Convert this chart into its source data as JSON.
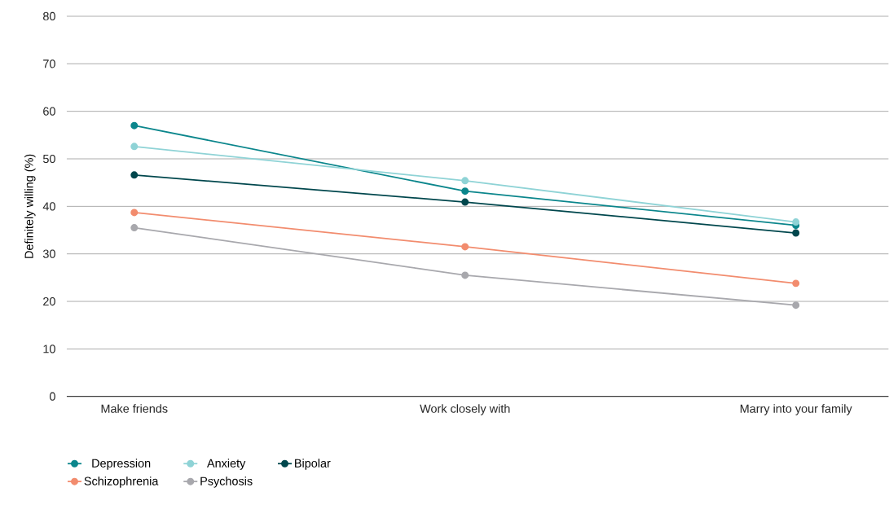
{
  "chart_data": {
    "type": "line",
    "ylabel": "Definitely willing (%)",
    "categories": [
      "Make friends",
      "Work closely with",
      "Marry into your family"
    ],
    "series": [
      {
        "name": "Depression",
        "color": "#0b868c",
        "values": [
          57,
          43.2,
          36
        ]
      },
      {
        "name": "Anxiety",
        "color": "#8fd3d6",
        "values": [
          52.6,
          45.4,
          36.7
        ]
      },
      {
        "name": "Bipolar",
        "color": "#00474d",
        "values": [
          46.6,
          40.9,
          34.4
        ]
      },
      {
        "name": "Schizophrenia",
        "color": "#f28c6e",
        "values": [
          38.7,
          31.5,
          23.8
        ]
      },
      {
        "name": "Psychosis",
        "color": "#a8a8ad",
        "values": [
          35.5,
          25.5,
          19.2
        ]
      }
    ],
    "ylim": [
      0,
      80
    ],
    "yticks": [
      0,
      10,
      20,
      30,
      40,
      50,
      60,
      70,
      80
    ],
    "grid": "y",
    "legend": "bottom",
    "marker": "circle",
    "line_style": "solid"
  }
}
